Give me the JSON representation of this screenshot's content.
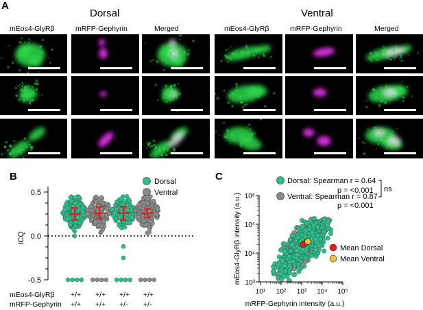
{
  "panel_A": {
    "letter": "A",
    "dorsal_title": "Dorsal",
    "ventral_title": "Ventral",
    "column_titles": [
      "mEos4-GlyRβ",
      "mRFP-Gephyrin",
      "Merged",
      "mEos4-GlyRβ",
      "mRFP-Gephyrin",
      "Merged"
    ],
    "colors": {
      "green": "#2cd84a",
      "magenta": "#e030e8",
      "white_overlap": "#f3e8ff"
    }
  },
  "panel_B": {
    "letter": "B",
    "y_axis_label": "ICQ",
    "y_ticks": [
      "0.5",
      "0.0",
      "-0.5"
    ],
    "legend": [
      {
        "label": "Dorsal",
        "color": "#2bbf8b"
      },
      {
        "label": "Ventral",
        "color": "#8c8c8c"
      }
    ],
    "genotype_rows": [
      {
        "label": "mEos4-GlyRβ",
        "values": [
          "+/+",
          "+/+",
          "+/+",
          "+/+"
        ]
      },
      {
        "label": "mRFP-Gephyrin",
        "values": [
          "+/+",
          "+/+",
          "+/-",
          "+/-"
        ]
      }
    ]
  },
  "panel_C": {
    "letter": "C",
    "y_axis_label": "mEos4-GlyRβ intensity (a.u.)",
    "x_axis_label": "mRFP-Gephyrin intensity (a.u.)",
    "y_ticks": [
      "10⁶",
      "10⁵",
      "10⁴",
      "10³"
    ],
    "x_ticks": [
      "10¹",
      "10²",
      "10³",
      "10⁴",
      "10⁵"
    ],
    "stat_dorsal_line1": "Dorsal: Spearman r = 0.64",
    "stat_dorsal_line2": "p = <0.001",
    "stat_ventral_line1": "Ventral: Spearman r = 0.87",
    "stat_ventral_line2": "p = <0.001",
    "ns_label": "ns",
    "mean_legend": [
      {
        "label": "Mean Dorsal",
        "color": "#e02020"
      },
      {
        "label": "Mean Ventral",
        "color": "#f0c040"
      }
    ]
  },
  "chart_data": [
    {
      "type": "scatter",
      "panel": "B",
      "ylabel": "ICQ",
      "ylim": [
        -0.5,
        0.5
      ],
      "categories": [
        "+/+ +/+ Dorsal",
        "+/+ +/+ Ventral",
        "+/+ +/- Dorsal",
        "+/+ +/- Ventral"
      ],
      "series": [
        {
          "name": "Dorsal",
          "color": "#2bbf8b",
          "groups": [
            0,
            2
          ],
          "median": [
            0.25,
            0.26
          ],
          "iqr": [
            [
              0.18,
              0.32
            ],
            [
              0.18,
              0.33
            ]
          ],
          "outliers_low": [
            [
              0.0,
              -0.5
            ],
            [
              -0.25,
              -0.12,
              -0.5
            ]
          ]
        },
        {
          "name": "Ventral",
          "color": "#8c8c8c",
          "groups": [
            1,
            3
          ],
          "median": [
            0.26,
            0.26
          ],
          "iqr": [
            [
              0.2,
              0.33
            ],
            [
              0.21,
              0.31
            ]
          ],
          "outliers_low": [
            [
              -0.5
            ],
            [
              -0.5
            ]
          ]
        }
      ],
      "zero_line": 0.0
    },
    {
      "type": "scatter",
      "panel": "C",
      "xlabel": "mRFP-Gephyrin intensity (a.u.)",
      "ylabel": "mEos4-GlyRβ intensity (a.u.)",
      "xlog": true,
      "ylog": true,
      "xlim": [
        10,
        100000
      ],
      "ylim": [
        1000,
        1000000
      ],
      "series": [
        {
          "name": "Dorsal",
          "color": "#2bbf8b",
          "spearman_r": 0.64,
          "p": "<0.001"
        },
        {
          "name": "Ventral",
          "color": "#8c8c8c",
          "spearman_r": 0.87,
          "p": "<0.001"
        }
      ],
      "means": [
        {
          "name": "Mean Dorsal",
          "x": 1200,
          "y": 20000,
          "color": "#e02020"
        },
        {
          "name": "Mean Ventral",
          "x": 2000,
          "y": 25000,
          "color": "#f0c040"
        }
      ]
    }
  ]
}
